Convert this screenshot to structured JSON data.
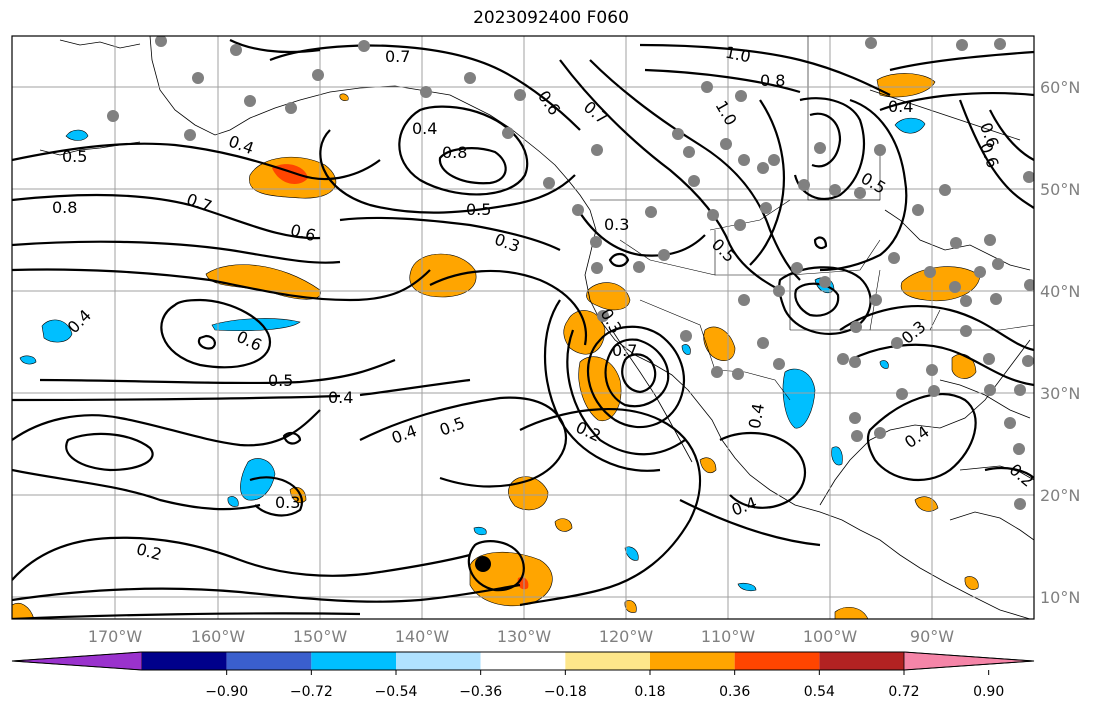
{
  "title": "2023092400 F060",
  "colors": {
    "station_dot": "#808080",
    "contour": "#000000",
    "grid": "#a0a0a0"
  },
  "colorbar": {
    "colors": [
      "#9a32cd",
      "#00008b",
      "#3a5fcd",
      "#00bfff",
      "#b0e2ff",
      "#ffffff",
      "#fde68a",
      "#ffa500",
      "#ff4500",
      "#b22222",
      "#f585a8"
    ],
    "tick_labels": [
      "−0.90",
      "−0.72",
      "−0.54",
      "−0.36",
      "−0.18",
      "0.18",
      "0.36",
      "0.54",
      "0.72",
      "0.90"
    ]
  },
  "axes": {
    "lon_labels": [
      "170°W",
      "160°W",
      "150°W",
      "140°W",
      "130°W",
      "120°W",
      "110°W",
      "100°W",
      "90°W"
    ],
    "lat_labels": [
      "60°N",
      "50°N",
      "40°N",
      "30°N",
      "20°N",
      "10°N"
    ]
  },
  "contour_labels": [
    "0.7",
    "1.0",
    "0.8",
    "0.6",
    "0.7",
    "1.0",
    "0.4",
    "0.4",
    "0.8",
    "0.5",
    "0.5",
    "0.4",
    "0.8",
    "0.7",
    "0.6",
    "0.5",
    "0.3",
    "0.3",
    "0.6",
    "0.4",
    "0.6",
    "0.5",
    "0.4",
    "0.4",
    "0.5",
    "0.3",
    "0.2",
    "0.2",
    "0.4",
    "0.4",
    "0.6",
    "0.5",
    "0.3",
    "0.3",
    "0.2",
    "0.7",
    "0.4"
  ]
}
